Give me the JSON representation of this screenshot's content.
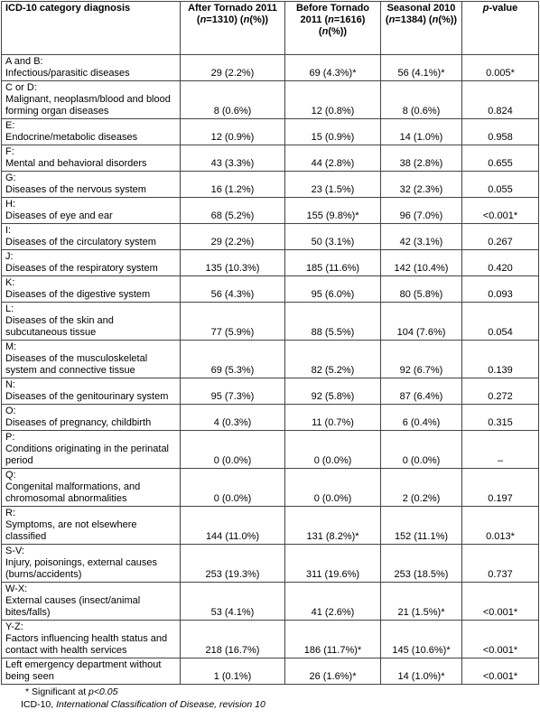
{
  "table": {
    "header": [
      [
        {
          "t": "ICD-10 category diagnosis"
        }
      ],
      [
        {
          "t": "After Tornado 2011 ("
        },
        {
          "t": "n",
          "i": true
        },
        {
          "t": "=1310) ("
        },
        {
          "t": "n",
          "i": true
        },
        {
          "t": "(%))"
        }
      ],
      [
        {
          "t": "Before Tornado 2011 ("
        },
        {
          "t": "n",
          "i": true
        },
        {
          "t": "=1616) ("
        },
        {
          "t": "n",
          "i": true
        },
        {
          "t": "(%))"
        }
      ],
      [
        {
          "t": "Seasonal 2010 ("
        },
        {
          "t": "n",
          "i": true
        },
        {
          "t": "=1384) ("
        },
        {
          "t": "n",
          "i": true
        },
        {
          "t": "(%))"
        }
      ],
      [
        {
          "t": "p",
          "i": true
        },
        {
          "t": "-value"
        }
      ]
    ],
    "rows": [
      {
        "code": "A and B:",
        "label": "Infectious/parasitic diseases",
        "cells": [
          "29 (2.2%)",
          "69 (4.3%)*",
          "56 (4.1%)*",
          "0.005*"
        ]
      },
      {
        "code": "C or D:",
        "label": "Malignant, neoplasm/blood and blood forming organ diseases",
        "cells": [
          "8 (0.6%)",
          "12 (0.8%)",
          "8 (0.6%)",
          "0.824"
        ]
      },
      {
        "code": "E:",
        "label": "Endocrine/metabolic diseases",
        "cells": [
          "12 (0.9%)",
          "15 (0.9%)",
          "14 (1.0%)",
          "0.958"
        ]
      },
      {
        "code": "F:",
        "label": "Mental and behavioral disorders",
        "cells": [
          "43 (3.3%)",
          "44 (2.8%)",
          "38 (2.8%)",
          "0.655"
        ]
      },
      {
        "code": "G:",
        "label": "Diseases of the nervous system",
        "cells": [
          "16 (1.2%)",
          "23 (1.5%)",
          "32 (2.3%)",
          "0.055"
        ]
      },
      {
        "code": "H:",
        "label": "Diseases of eye and ear",
        "cells": [
          "68 (5.2%)",
          "155 (9.8%)*",
          "96 (7.0%)",
          "<0.001*"
        ]
      },
      {
        "code": "I:",
        "label": "Diseases of the circulatory system",
        "cells": [
          "29 (2.2%)",
          "50 (3.1%)",
          "42 (3.1%)",
          "0.267"
        ]
      },
      {
        "code": "J:",
        "label": "Diseases of the respiratory system",
        "cells": [
          "135 (10.3%)",
          "185 (11.6%)",
          "142 (10.4%)",
          "0.420"
        ]
      },
      {
        "code": "K:",
        "label": "Diseases of the digestive system",
        "cells": [
          "56 (4.3%)",
          "95 (6.0%)",
          "80 (5.8%)",
          "0.093"
        ]
      },
      {
        "code": "L:",
        "label": "Diseases of the skin and subcutaneous tissue",
        "cells": [
          "77 (5.9%)",
          "88 (5.5%)",
          "104 (7.6%)",
          "0.054"
        ]
      },
      {
        "code": "M:",
        "label": "Diseases of the musculoskeletal system and connective tissue",
        "cells": [
          "69 (5.3%)",
          "82 (5.2%)",
          "92 (6.7%)",
          "0.139"
        ]
      },
      {
        "code": "N:",
        "label": "Diseases of the genitourinary system",
        "cells": [
          "95 (7.3%)",
          "92 (5.8%)",
          "87 (6.4%)",
          "0.272"
        ]
      },
      {
        "code": "O:",
        "label": "Diseases of pregnancy, childbirth",
        "cells": [
          "4 (0.3%)",
          "11 (0.7%)",
          "6 (0.4%)",
          "0.315"
        ]
      },
      {
        "code": "P:",
        "label": "Conditions originating in the perinatal period",
        "cells": [
          "0 (0.0%)",
          "0 (0.0%)",
          "0 (0.0%)",
          "–"
        ]
      },
      {
        "code": "Q:",
        "label": "Congenital malformations, and chromosomal abnormalities",
        "cells": [
          "0 (0.0%)",
          "0 (0.0%)",
          "2 (0.2%)",
          "0.197"
        ]
      },
      {
        "code": "R:",
        "label": "Symptoms, are not elsewhere classified",
        "cells": [
          "144 (11.0%)",
          "131 (8.2%)*",
          "152 (11.1%)",
          "0.013*"
        ]
      },
      {
        "code": "S-V:",
        "label": "Injury, poisonings, external causes (burns/accidents)",
        "cells": [
          "253 (19.3%)",
          "311 (19.6%)",
          "253 (18.5%)",
          "0.737"
        ]
      },
      {
        "code": "W-X:",
        "label": "External causes (insect/animal bites/falls)",
        "cells": [
          "53 (4.1%)",
          "41 (2.6%)",
          "21 (1.5%)*",
          "<0.001*"
        ]
      },
      {
        "code": "Y-Z:",
        "label": "Factors influencing health status and contact with health services",
        "cells": [
          "218 (16.7%)",
          "186 (11.7%)*",
          "145 (10.6%)*",
          "<0.001*"
        ]
      },
      {
        "label": "Left emergency department without being seen",
        "cells": [
          "1 (0.1%)",
          "26 (1.6%)*",
          "14 (1.0%)*",
          "<0.001*"
        ]
      }
    ]
  },
  "footnotes": [
    [
      {
        "t": "* Significant at "
      },
      {
        "t": "p<0.05",
        "i": true
      }
    ],
    [
      {
        "t": "ICD-10, "
      },
      {
        "t": "International Classification of Disease, revision 10",
        "i": true
      }
    ]
  ]
}
